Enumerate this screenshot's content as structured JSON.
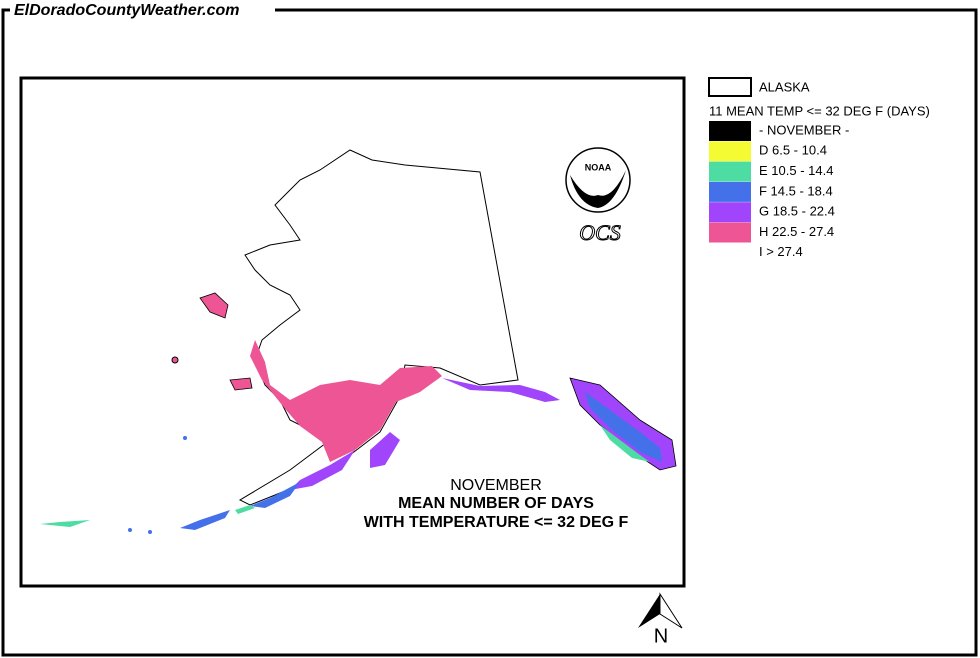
{
  "header": {
    "title": "ElDoradoCountyWeather.com"
  },
  "logo": {
    "agency": "NOAA",
    "office": "OCS"
  },
  "map": {
    "caption": [
      "NOVEMBER",
      "MEAN NUMBER OF DAYS",
      "WITH TEMPERATURE <= 32 DEG F"
    ],
    "north": "N"
  },
  "legend": {
    "region": "ALASKA",
    "title": "11 MEAN TEMP <= 32 DEG F (DAYS)",
    "entries": [
      {
        "label": "- NOVEMBER -",
        "color": "#000000"
      },
      {
        "label": "D 6.5 - 10.4",
        "color": "#f4fb33"
      },
      {
        "label": "E 10.5 - 14.4",
        "color": "#4ddca2"
      },
      {
        "label": "F 14.5 - 18.4",
        "color": "#4470ea"
      },
      {
        "label": "G 18.5 - 22.4",
        "color": "#a045fb"
      },
      {
        "label": "H 22.5 - 27.4",
        "color": "#ee5594"
      },
      {
        "label": "I > 27.4",
        "color": "#ffffff"
      }
    ]
  }
}
